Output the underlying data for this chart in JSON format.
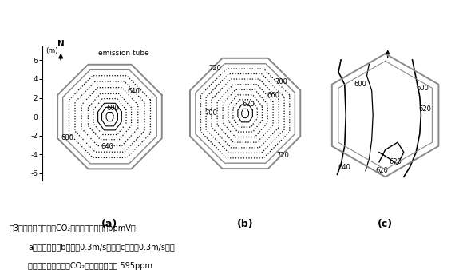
{
  "title_a": "(a)",
  "title_b": "(b)",
  "title_c": "(c)",
  "caption_line1": "図3．群落高におけるCO₂濃度の水平分布（ppmV）",
  "caption_line2": "a）全風速域、b）風速0.3m/s以下、c）風速0.3m/s以上",
  "caption_line3": "リング中央におけるCO₂濃度の設定値は 595ppm",
  "emission_tube_label": "emission tube",
  "north_label": "N",
  "m_label": "(m)"
}
